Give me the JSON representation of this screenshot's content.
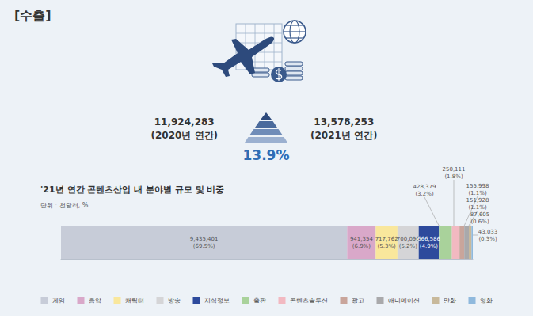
{
  "header": {
    "title": "[수출]"
  },
  "summary": {
    "previous": {
      "label": "11,924,283",
      "period": "(2020년 연간)"
    },
    "current": {
      "label": "13,578,253",
      "period": "(2021년 연간)"
    },
    "growth": "13.9%"
  },
  "chart_data": {
    "type": "bar",
    "title": "'21년 연간 콘텐츠산업 내 분야별 규모 및 비중",
    "subtitle": "단위 : 천달러, %",
    "orientation": "horizontal",
    "stacked": true,
    "data_labels": true,
    "tick_labels": false,
    "grid": false,
    "legend": "bottom",
    "categories": [
      null
    ],
    "xlim": [
      0,
      13578253
    ],
    "series": [
      {
        "name": "게임",
        "color": "#c7ccd8",
        "values": [
          9435401
        ],
        "value_labels": [
          "9,435,401"
        ],
        "shares": [
          69.5
        ],
        "share_labels": [
          "(69.5%)"
        ]
      },
      {
        "name": "음악",
        "color": "#d9a8c9",
        "values": [
          941354
        ],
        "value_labels": [
          "941,354"
        ],
        "shares": [
          6.9
        ],
        "share_labels": [
          "(6.9%)"
        ]
      },
      {
        "name": "캐릭터",
        "color": "#f9e79c",
        "values": [
          717762
        ],
        "value_labels": [
          "717,762"
        ],
        "shares": [
          5.3
        ],
        "share_labels": [
          "(5.3%)"
        ]
      },
      {
        "name": "방송",
        "color": "#d5d5d7",
        "values": [
          700096
        ],
        "value_labels": [
          "700,096"
        ],
        "shares": [
          5.2
        ],
        "share_labels": [
          "(5.2%)"
        ]
      },
      {
        "name": "지식정보",
        "color": "#2d4a9c",
        "values": [
          666586
        ],
        "value_labels": [
          "666,586"
        ],
        "shares": [
          4.9
        ],
        "share_labels": [
          "(4.9%)"
        ]
      },
      {
        "name": "출판",
        "color": "#a9d29b",
        "values": [
          428379
        ],
        "value_labels": [
          "428,379"
        ],
        "shares": [
          3.2
        ],
        "share_labels": [
          "(3.2%)"
        ]
      },
      {
        "name": "콘텐츠솔루션",
        "color": "#f2b9c1",
        "values": [
          250111
        ],
        "value_labels": [
          "250,111"
        ],
        "shares": [
          1.8
        ],
        "share_labels": [
          "(1.8%)"
        ]
      },
      {
        "name": "광고",
        "color": "#c9a59b",
        "values": [
          155998
        ],
        "value_labels": [
          "155,998"
        ],
        "shares": [
          1.1
        ],
        "share_labels": [
          "(1.1%)"
        ]
      },
      {
        "name": "애니메이션",
        "color": "#a9a9ab",
        "values": [
          151928
        ],
        "value_labels": [
          "151,928"
        ],
        "shares": [
          1.1
        ],
        "share_labels": [
          "(1.1%)"
        ]
      },
      {
        "name": "만화",
        "color": "#c8b99b",
        "values": [
          87605
        ],
        "value_labels": [
          "87,605"
        ],
        "shares": [
          0.6
        ],
        "share_labels": [
          "(0.6%)"
        ]
      },
      {
        "name": "영화",
        "color": "#8fb9dd",
        "values": [
          43033
        ],
        "value_labels": [
          "43,033"
        ],
        "shares": [
          0.3
        ],
        "share_labels": [
          "(0.3%)"
        ]
      }
    ]
  }
}
